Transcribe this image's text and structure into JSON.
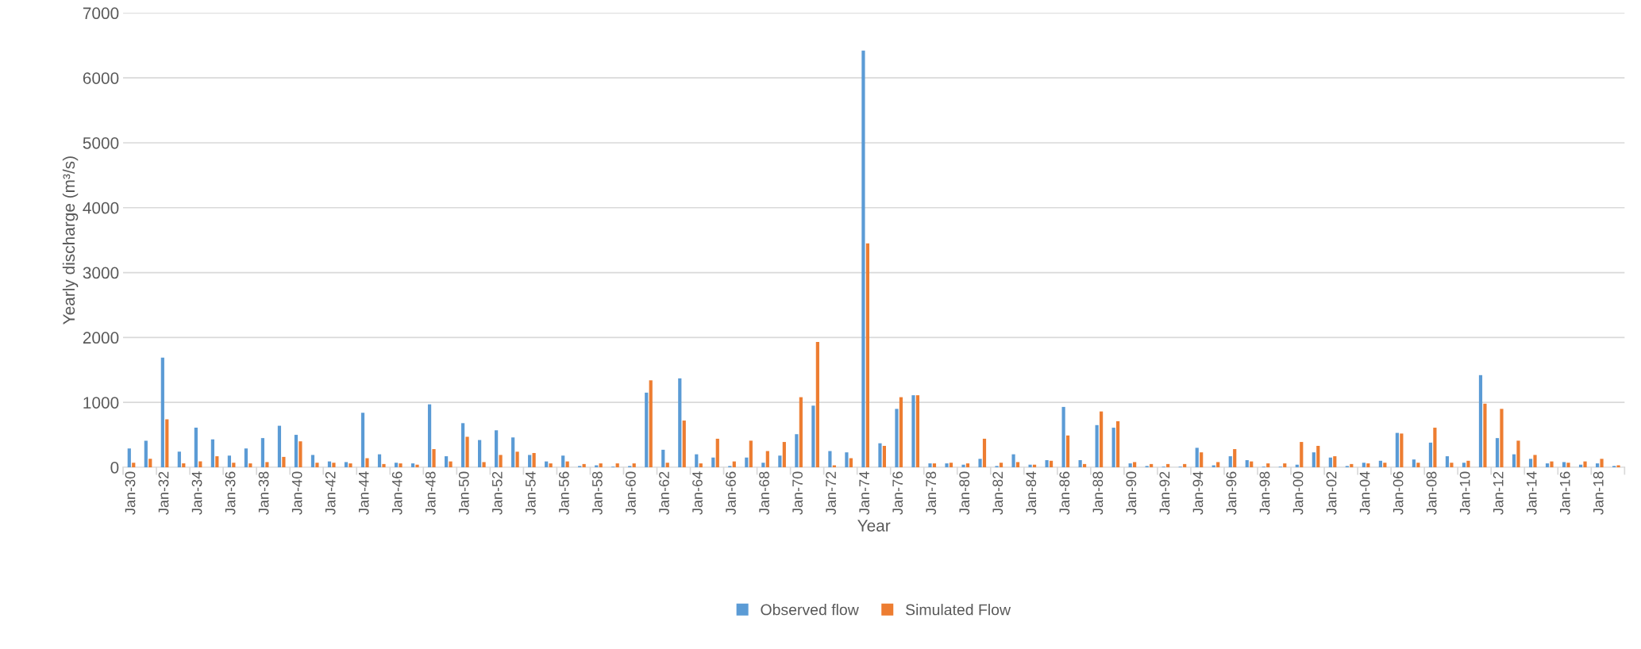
{
  "chart_data": {
    "type": "bar",
    "xlabel": "Year",
    "ylabel": "Yearly discharge (m³/s)",
    "categories": [
      "Jan-30",
      null,
      "Jan-32",
      null,
      "Jan-34",
      null,
      "Jan-36",
      null,
      "Jan-38",
      null,
      "Jan-40",
      null,
      "Jan-42",
      null,
      "Jan-44",
      null,
      "Jan-46",
      null,
      "Jan-48",
      null,
      "Jan-50",
      null,
      "Jan-52",
      null,
      "Jan-54",
      null,
      "Jan-56",
      null,
      "Jan-58",
      null,
      "Jan-60",
      null,
      "Jan-62",
      null,
      "Jan-64",
      null,
      "Jan-66",
      null,
      "Jan-68",
      null,
      "Jan-70",
      null,
      "Jan-72",
      null,
      "Jan-74",
      null,
      "Jan-76",
      null,
      "Jan-78",
      null,
      "Jan-80",
      null,
      "Jan-82",
      null,
      "Jan-84",
      null,
      "Jan-86",
      null,
      "Jan-88",
      null,
      "Jan-90",
      null,
      "Jan-92",
      null,
      "Jan-94",
      null,
      "Jan-96",
      null,
      "Jan-98",
      null,
      "Jan-00",
      null,
      "Jan-02",
      null,
      "Jan-04",
      null,
      "Jan-06",
      null,
      "Jan-08",
      null,
      "Jan-10",
      null,
      "Jan-12",
      null,
      "Jan-14",
      null,
      "Jan-16",
      null,
      "Jan-18",
      null
    ],
    "series": [
      {
        "name": "Observed flow",
        "color": "#5b9bd5",
        "values": [
          290,
          410,
          1690,
          240,
          610,
          430,
          180,
          290,
          450,
          640,
          500,
          190,
          90,
          80,
          840,
          200,
          70,
          60,
          970,
          170,
          680,
          420,
          570,
          460,
          190,
          90,
          180,
          20,
          30,
          10,
          20,
          1150,
          270,
          1370,
          200,
          150,
          20,
          150,
          70,
          180,
          510,
          950,
          250,
          230,
          6420,
          370,
          900,
          1110,
          60,
          60,
          40,
          130,
          20,
          200,
          40,
          110,
          930,
          110,
          650,
          610,
          60,
          20,
          10,
          10,
          300,
          30,
          170,
          110,
          10,
          10,
          40,
          230,
          150,
          20,
          70,
          100,
          530,
          120,
          380,
          170,
          70,
          1420,
          450,
          200,
          130,
          60,
          80,
          40,
          60,
          20
        ]
      },
      {
        "name": "Simulated Flow",
        "color": "#ed7d31",
        "values": [
          70,
          130,
          740,
          60,
          90,
          170,
          70,
          60,
          80,
          160,
          400,
          70,
          70,
          60,
          140,
          50,
          60,
          40,
          280,
          90,
          470,
          80,
          190,
          240,
          220,
          60,
          90,
          50,
          60,
          60,
          60,
          1340,
          70,
          720,
          60,
          440,
          90,
          410,
          250,
          390,
          1080,
          1930,
          30,
          140,
          3450,
          330,
          1080,
          1110,
          60,
          70,
          60,
          440,
          70,
          80,
          40,
          100,
          490,
          50,
          860,
          710,
          80,
          50,
          50,
          50,
          230,
          80,
          280,
          90,
          60,
          60,
          390,
          330,
          170,
          50,
          60,
          70,
          520,
          70,
          610,
          70,
          100,
          980,
          900,
          410,
          190,
          90,
          70,
          90,
          130,
          30
        ]
      }
    ],
    "ylim": [
      0,
      7000
    ],
    "yticks": [
      0,
      1000,
      2000,
      3000,
      4000,
      5000,
      6000,
      7000
    ],
    "grid": "y",
    "legend": "bottom"
  }
}
